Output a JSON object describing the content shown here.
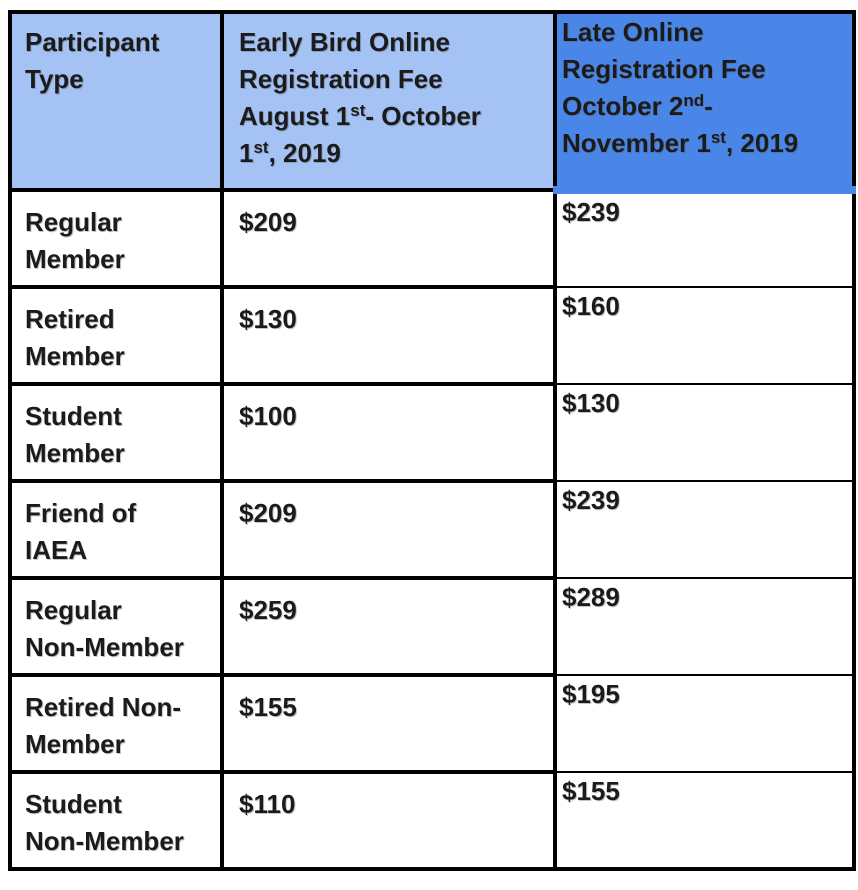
{
  "colors": {
    "header_light_blue": "#a4c2f4",
    "header_dark_blue": "#4a86e8",
    "border_black": "#000000",
    "text": "#1b1b1b",
    "cell_white": "#ffffff"
  },
  "table": {
    "columns": [
      {
        "id": "participant_type",
        "header_lines": [
          [
            {
              "text": "Participant"
            }
          ],
          [
            {
              "text": "Type"
            }
          ]
        ]
      },
      {
        "id": "early_bird_fee",
        "header_lines": [
          [
            {
              "text": "Early Bird Online"
            }
          ],
          [
            {
              "text": "Registration Fee"
            }
          ],
          [
            {
              "text": "August 1"
            },
            {
              "text": "st",
              "sup": true
            },
            {
              "text": "- October"
            }
          ],
          [
            {
              "text": "1"
            },
            {
              "text": "st",
              "sup": true
            },
            {
              "text": ", 2019"
            }
          ]
        ]
      },
      {
        "id": "late_fee",
        "header_lines": [
          [
            {
              "text": "Late Online"
            }
          ],
          [
            {
              "text": "Registration Fee"
            }
          ],
          [
            {
              "text": "October 2"
            },
            {
              "text": "nd",
              "sup": true
            },
            {
              "text": "-"
            }
          ],
          [
            {
              "text": "November 1"
            },
            {
              "text": "st",
              "sup": true
            },
            {
              "text": ", 2019"
            }
          ]
        ]
      }
    ],
    "rows": [
      {
        "participant_lines": [
          "Regular",
          "Member"
        ],
        "early_fee": "$209",
        "late_fee": "$239"
      },
      {
        "participant_lines": [
          "Retired",
          "Member"
        ],
        "early_fee": "$130",
        "late_fee": "$160"
      },
      {
        "participant_lines": [
          "Student",
          "Member"
        ],
        "early_fee": "$100",
        "late_fee": "$130"
      },
      {
        "participant_lines": [
          "Friend of",
          "IAEA"
        ],
        "early_fee": "$209",
        "late_fee": "$239"
      },
      {
        "participant_lines": [
          "Regular",
          "Non-Member"
        ],
        "early_fee": "$259",
        "late_fee": "$289"
      },
      {
        "participant_lines": [
          "Retired Non-",
          "Member"
        ],
        "early_fee": "$155",
        "late_fee": "$195"
      },
      {
        "participant_lines": [
          "Student",
          "Non-Member"
        ],
        "early_fee": "$110",
        "late_fee": "$155"
      }
    ]
  }
}
